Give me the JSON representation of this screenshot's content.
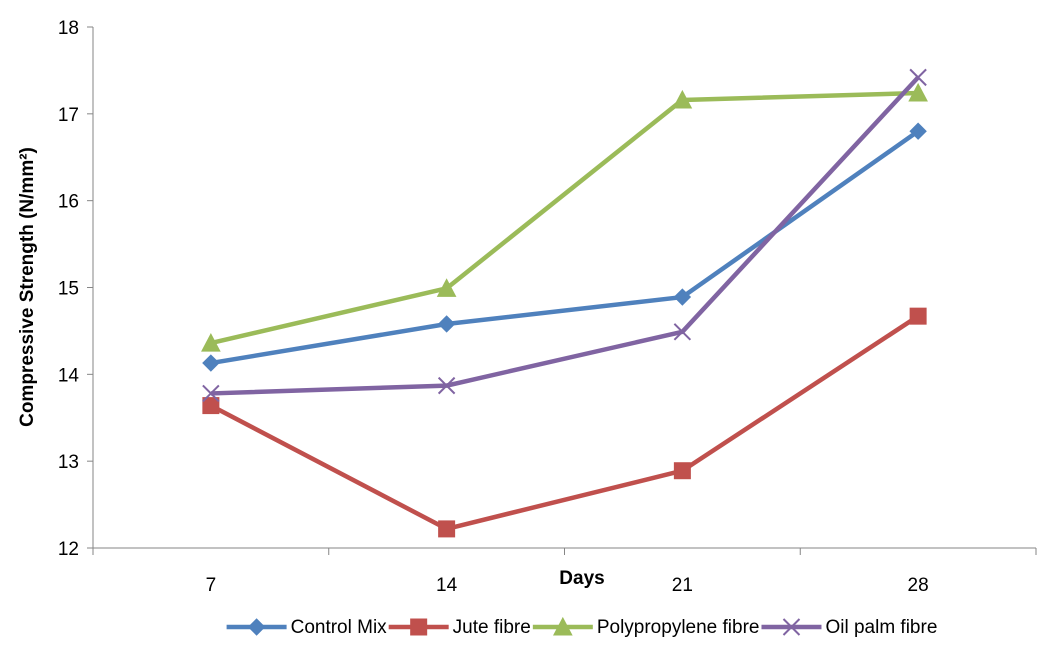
{
  "chart_data": {
    "type": "line",
    "title": "",
    "xlabel": "Days",
    "ylabel": "Compressive Strength (N/mm²)",
    "categories": [
      "7",
      "14",
      "21",
      "28"
    ],
    "ylim": [
      12,
      18
    ],
    "yticks": [
      "12",
      "13",
      "14",
      "15",
      "16",
      "17",
      "18"
    ],
    "grid": false,
    "legend_position": "bottom",
    "series": [
      {
        "name": "Control Mix",
        "values": [
          14.13,
          14.58,
          14.89,
          16.8
        ],
        "color": "#4F81BD",
        "marker": "diamond"
      },
      {
        "name": "Jute fibre",
        "values": [
          13.64,
          12.22,
          12.89,
          14.67
        ],
        "color": "#C0504D",
        "marker": "square"
      },
      {
        "name": "Polypropylene fibre",
        "values": [
          14.36,
          14.99,
          17.16,
          17.24
        ],
        "color": "#9BBB59",
        "marker": "triangle"
      },
      {
        "name": "Oil palm fibre",
        "values": [
          13.78,
          13.87,
          14.49,
          17.42
        ],
        "color": "#8064A2",
        "marker": "x"
      }
    ]
  }
}
